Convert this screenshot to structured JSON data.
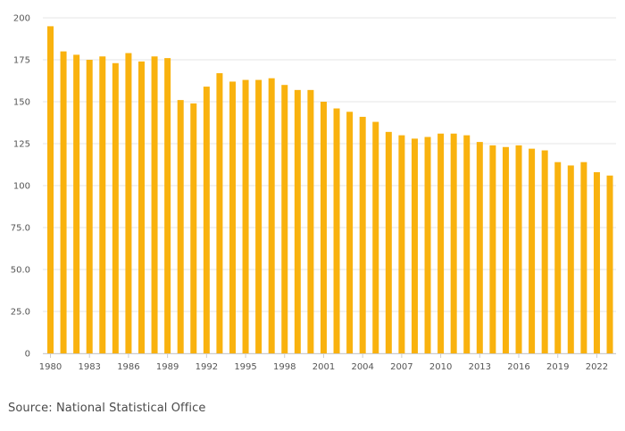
{
  "chart_data": {
    "type": "bar",
    "categories": [
      "1980",
      "1981",
      "1982",
      "1983",
      "1984",
      "1985",
      "1986",
      "1987",
      "1988",
      "1989",
      "1990",
      "1991",
      "1992",
      "1993",
      "1994",
      "1995",
      "1996",
      "1997",
      "1998",
      "1999",
      "2000",
      "2001",
      "2002",
      "2003",
      "2004",
      "2005",
      "2006",
      "2007",
      "2008",
      "2009",
      "2010",
      "2011",
      "2012",
      "2013",
      "2014",
      "2015",
      "2016",
      "2017",
      "2018",
      "2019",
      "2020",
      "2021",
      "2022",
      "2023"
    ],
    "values": [
      195,
      180,
      178,
      175,
      177,
      173,
      179,
      174,
      177,
      176,
      151,
      149,
      159,
      167,
      162,
      163,
      163,
      164,
      160,
      157,
      157,
      150,
      146,
      144,
      141,
      138,
      132,
      130,
      128,
      129,
      131,
      131,
      130,
      126,
      124,
      123,
      124,
      122,
      121,
      114,
      112,
      114,
      108,
      106
    ],
    "x_tick_labels": [
      "1980",
      "1983",
      "1986",
      "1989",
      "1992",
      "1995",
      "1998",
      "2001",
      "2004",
      "2007",
      "2010",
      "2013",
      "2016",
      "2019",
      "2022"
    ],
    "y_ticks": [
      0,
      25,
      50,
      75,
      100,
      125,
      150,
      175,
      200
    ],
    "y_tick_labels": [
      "0",
      "25.0",
      "50.0",
      "75.0",
      "100",
      "125",
      "150",
      "175",
      "200"
    ],
    "ylim": [
      0,
      200
    ],
    "grid": true,
    "bar_color": "#F9B20E",
    "title": "",
    "xlabel": "",
    "ylabel": ""
  },
  "source": "Source: National Statistical Office"
}
